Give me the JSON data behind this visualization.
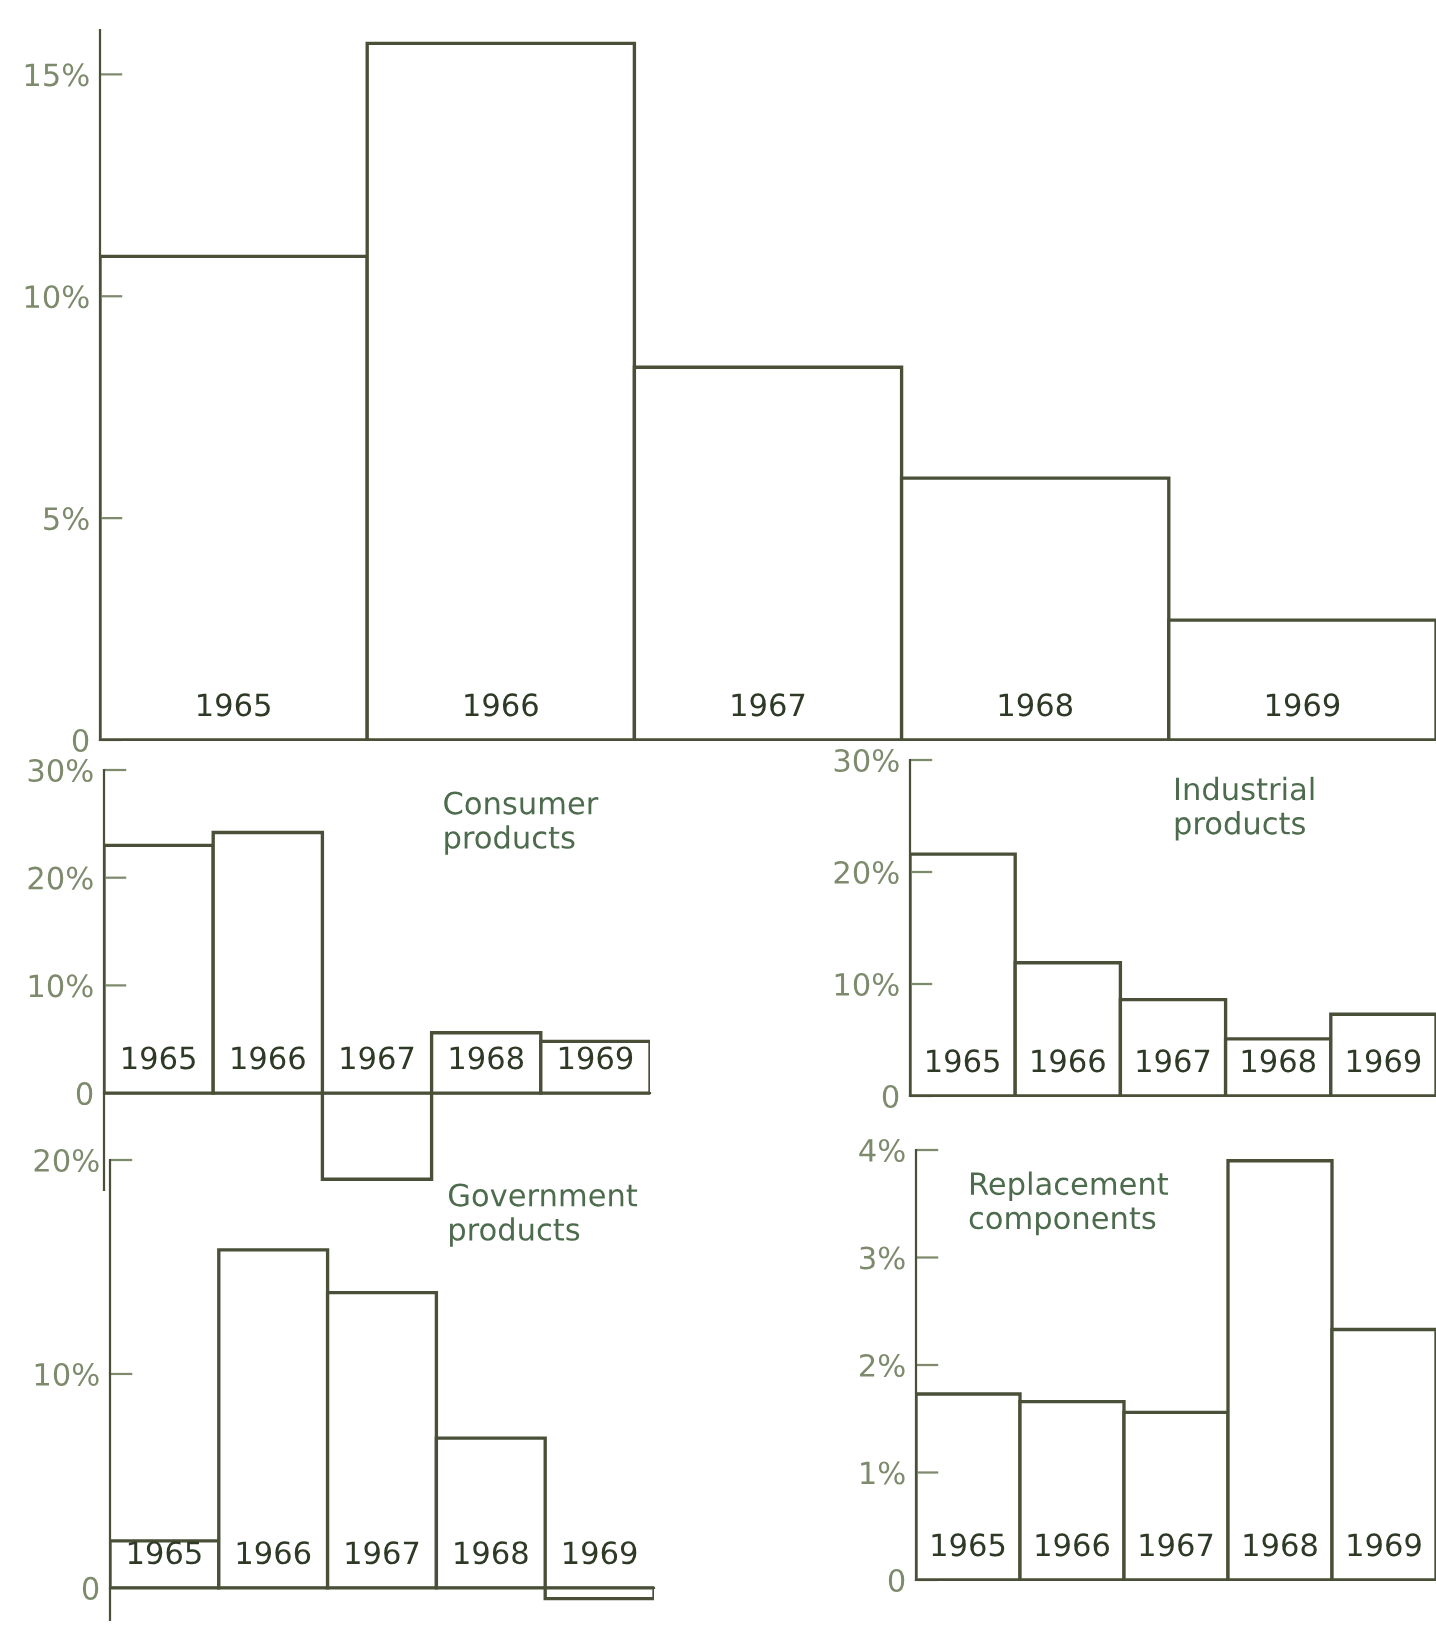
{
  "chart_data": [
    {
      "type": "bar",
      "categories": [
        "1965",
        "1966",
        "1967",
        "1968",
        "1969"
      ],
      "values": [
        10.9,
        15.7,
        8.4,
        5.9,
        2.7
      ],
      "color": "#ffffff",
      "ylim": [
        0,
        16
      ],
      "yticks": [
        0,
        {
          "value": 5,
          "label": "5%"
        },
        {
          "value": 10,
          "label": "10%"
        },
        {
          "value": 15,
          "label": "15%"
        }
      ]
    },
    {
      "type": "bar",
      "title": "Consumer\nproducts",
      "categories": [
        "1965",
        "1966",
        "1967",
        "1968",
        "1969"
      ],
      "values": [
        23.0,
        24.2,
        -8,
        5.6,
        4.8
      ],
      "color": "#ffffff",
      "ylim": [
        -9,
        30
      ],
      "yticks": [
        0,
        {
          "value": 10,
          "label": "10%"
        },
        {
          "value": 20,
          "label": "20%"
        },
        {
          "value": 30,
          "label": "30%"
        }
      ]
    },
    {
      "type": "bar",
      "title": "Industrial\nproducts",
      "categories": [
        "1965",
        "1966",
        "1967",
        "1968",
        "1969"
      ],
      "values": [
        21.6,
        11.9,
        8.6,
        5.1,
        7.3
      ],
      "color": "#ffffff",
      "ylim": [
        0,
        30
      ],
      "yticks": [
        0,
        {
          "value": 10,
          "label": "10%"
        },
        {
          "value": 20,
          "label": "20%"
        },
        {
          "value": 30,
          "label": "30%"
        }
      ]
    },
    {
      "type": "bar",
      "title": "Government\nproducts",
      "categories": [
        "1965",
        "1966",
        "1967",
        "1968",
        "1969"
      ],
      "values": [
        2.2,
        15.8,
        13.8,
        7.0,
        -0.5
      ],
      "color": "#ffffff",
      "ylim": [
        -1.5,
        20
      ],
      "yticks": [
        0,
        {
          "value": 10,
          "label": "10%"
        },
        {
          "value": 20,
          "label": "20%"
        }
      ]
    },
    {
      "type": "bar",
      "title": "Replacement\ncomponents",
      "categories": [
        "1965",
        "1966",
        "1967",
        "1968",
        "1969"
      ],
      "values": [
        1.73,
        1.66,
        1.56,
        3.9,
        2.33
      ],
      "color": "#ffffff",
      "ylim": [
        0,
        4
      ],
      "yticks": [
        0,
        {
          "value": 1,
          "label": "1%"
        },
        {
          "value": 2,
          "label": "2%"
        },
        {
          "value": 3,
          "label": "3%"
        },
        {
          "value": 4,
          "label": "4%"
        }
      ]
    }
  ]
}
